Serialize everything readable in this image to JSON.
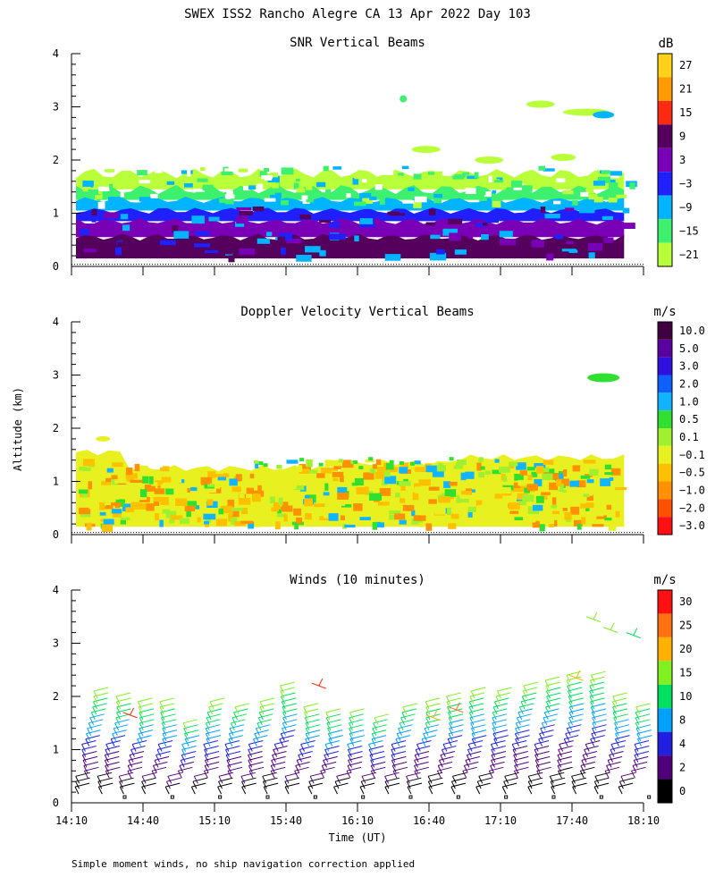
{
  "title": "SWEX ISS2 Rancho Alegre CA  13 Apr 2022 Day 103",
  "footnote": "Simple moment winds, no ship navigation correction applied",
  "chart_data": [
    {
      "type": "heatmap",
      "title": "SNR Vertical Beams",
      "colorbar": {
        "unit": "dB",
        "labels": [
          "27",
          "21",
          "15",
          "9",
          "3",
          "−3",
          "−9",
          "−15",
          "−21"
        ],
        "colors": [
          "#ffd21a",
          "#ff9a00",
          "#ff2a12",
          "#54005c",
          "#7a00b8",
          "#2020ff",
          "#00b4ff",
          "#3df06e",
          "#b9ff3a"
        ]
      },
      "ylabel": "",
      "ylim": [
        0,
        4
      ],
      "yticks": [
        "0",
        "1",
        "2",
        "3",
        "4"
      ],
      "xlim": [
        "14:10",
        "18:10"
      ],
      "layers": [
        {
          "from_km": 0.15,
          "to_km": 0.55,
          "color": "#54005c"
        },
        {
          "from_km": 0.55,
          "to_km": 0.85,
          "color": "#7a00b8"
        },
        {
          "from_km": 0.85,
          "to_km": 1.05,
          "color": "#2020ff"
        },
        {
          "from_km": 1.05,
          "to_km": 1.25,
          "color": "#00b4ff"
        },
        {
          "from_km": 1.25,
          "to_km": 1.45,
          "color": "#3df06e"
        },
        {
          "from_km": 1.45,
          "to_km": 1.75,
          "color": "#b9ff3a"
        }
      ]
    },
    {
      "type": "heatmap",
      "title": "Doppler Velocity Vertical Beams",
      "colorbar": {
        "unit": "m/s",
        "labels": [
          "10.0",
          "5.0",
          "3.0",
          "2.0",
          "1.0",
          "0.5",
          "0.1",
          "−0.1",
          "−0.5",
          "−1.0",
          "−2.0",
          "−3.0"
        ],
        "colors": [
          "#400040",
          "#5a00a0",
          "#3010e0",
          "#1060ff",
          "#10b4ff",
          "#30e030",
          "#a0f030",
          "#e8f020",
          "#ffc000",
          "#ff9000",
          "#ff5000",
          "#ff1010"
        ]
      },
      "ylabel": "Altitude (km)",
      "ylim": [
        0,
        4
      ],
      "yticks": [
        "0",
        "1",
        "2",
        "3",
        "4"
      ],
      "xlim": [
        "14:10",
        "18:10"
      ],
      "dominant_values": [
        "−0.5",
        "−1.0",
        "−0.1",
        "0.1"
      ]
    },
    {
      "type": "wind_barbs",
      "title": "Winds (10 minutes)",
      "colorbar": {
        "unit": "m/s",
        "labels": [
          "30",
          "25",
          "20",
          "15",
          "10",
          "8",
          "4",
          "2",
          "0"
        ],
        "colors": [
          "#ff1010",
          "#ff7010",
          "#ffb000",
          "#80f020",
          "#00e060",
          "#00a0ff",
          "#2020e0",
          "#50007a",
          "#000000"
        ]
      },
      "xlabel": "Time (UT)",
      "ylim": [
        0,
        4
      ],
      "yticks": [
        "0",
        "1",
        "2",
        "3",
        "4"
      ],
      "xticks": [
        "14:10",
        "14:40",
        "15:10",
        "15:40",
        "16:10",
        "16:40",
        "17:10",
        "17:40",
        "18:10"
      ],
      "profile_times_min": [
        0,
        10,
        20,
        30,
        40,
        50,
        60,
        70,
        80,
        90,
        100,
        110,
        120,
        130,
        140,
        150,
        160,
        170,
        180,
        190,
        200,
        210,
        220,
        230
      ],
      "top_km": [
        2.15,
        2.1,
        2.0,
        1.95,
        1.6,
        1.95,
        1.9,
        2.0,
        2.25,
        1.85,
        1.8,
        1.8,
        1.7,
        1.9,
        2.0,
        2.05,
        2.15,
        2.2,
        2.3,
        2.4,
        2.5,
        2.45,
        2.1,
        1.9
      ]
    }
  ]
}
